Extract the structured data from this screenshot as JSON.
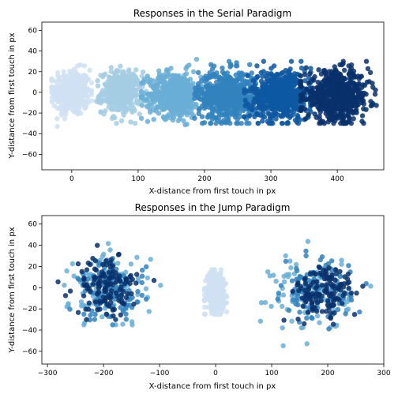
{
  "chart_data": [
    {
      "type": "scatter",
      "title": "Responses in the Serial Paradigm",
      "xlabel": "X-distance from first touch in px",
      "ylabel": "Y-distance from first touch in px",
      "xlim": [
        -45,
        470
      ],
      "ylim": [
        -75,
        68
      ],
      "xticks": [
        0,
        100,
        200,
        300,
        400
      ],
      "yticks": [
        -60,
        -40,
        -20,
        0,
        20,
        40,
        60
      ],
      "grid": false,
      "series": [
        {
          "color": "#cfe1f2",
          "cluster": {
            "center": [
              0,
              0
            ],
            "spread": [
              14,
              11
            ],
            "count": 360,
            "xrange": [
              -30,
              30
            ],
            "yrange": [
              -33,
              30
            ]
          }
        },
        {
          "color": "#a4cce3",
          "cluster": {
            "center": [
              75,
              0
            ],
            "spread": [
              15,
              10
            ],
            "count": 420,
            "xrange": [
              35,
              115
            ],
            "yrange": [
              -30,
              28
            ]
          }
        },
        {
          "color": "#6aaed6",
          "cluster": {
            "center": [
              155,
              -2
            ],
            "spread": [
              20,
              11
            ],
            "count": 520,
            "xrange": [
              105,
              205
            ],
            "yrange": [
              -32,
              32
            ]
          }
        },
        {
          "color": "#3282be",
          "cluster": {
            "center": [
              235,
              -3
            ],
            "spread": [
              22,
              12
            ],
            "count": 620,
            "xrange": [
              185,
              290
            ],
            "yrange": [
              -30,
              30
            ]
          }
        },
        {
          "color": "#0e58a2",
          "cluster": {
            "center": [
              315,
              -3
            ],
            "spread": [
              23,
              12
            ],
            "count": 620,
            "xrange": [
              260,
              360
            ],
            "yrange": [
              -30,
              30
            ]
          }
        },
        {
          "color": "#08306b",
          "cluster": {
            "center": [
              400,
              -4
            ],
            "spread": [
              24,
              12
            ],
            "count": 620,
            "xrange": [
              345,
              460
            ],
            "yrange": [
              -30,
              30
            ]
          }
        }
      ]
    },
    {
      "type": "scatter",
      "title": "Responses in the Jump Paradigm",
      "xlabel": "X-distance from first touch in px",
      "ylabel": "Y-distance from first touch in px",
      "xlim": [
        -310,
        300
      ],
      "ylim": [
        -72,
        68
      ],
      "xticks": [
        -300,
        -200,
        -100,
        0,
        100,
        200,
        300
      ],
      "yticks": [
        -60,
        -40,
        -20,
        0,
        20,
        40,
        60
      ],
      "grid": false,
      "series": [
        {
          "color": "#cfe1f2",
          "clusters": [
            {
              "center": [
                0,
                -4
              ],
              "spread": [
                8,
                9
              ],
              "count": 320,
              "xrange": [
                -20,
                20
              ],
              "yrange": [
                -25,
                17
              ]
            }
          ]
        },
        {
          "color": "#6aaed6",
          "clusters": [
            {
              "center": [
                -190,
                -2
              ],
              "spread": [
                35,
                18
              ],
              "count": 110,
              "xrange": [
                -270,
                -95
              ],
              "yrange": [
                -35,
                60
              ]
            },
            {
              "center": [
                170,
                -5
              ],
              "spread": [
                35,
                18
              ],
              "count": 110,
              "xrange": [
                80,
                280
              ],
              "yrange": [
                -68,
                50
              ]
            }
          ]
        },
        {
          "color": "#3282be",
          "clusters": [
            {
              "center": [
                -185,
                -3
              ],
              "spread": [
                30,
                14
              ],
              "count": 120,
              "xrange": [
                -260,
                -100
              ],
              "yrange": [
                -35,
                52
              ]
            },
            {
              "center": [
                180,
                -4
              ],
              "spread": [
                30,
                14
              ],
              "count": 120,
              "xrange": [
                100,
                270
              ],
              "yrange": [
                -40,
                52
              ]
            }
          ]
        },
        {
          "color": "#08306b",
          "clusters": [
            {
              "center": [
                -195,
                2
              ],
              "spread": [
                28,
                14
              ],
              "count": 130,
              "xrange": [
                -285,
                -110
              ],
              "yrange": [
                -30,
                43
              ]
            },
            {
              "center": [
                195,
                -5
              ],
              "spread": [
                28,
                13
              ],
              "count": 130,
              "xrange": [
                120,
                280
              ],
              "yrange": [
                -40,
                40
              ]
            }
          ]
        }
      ]
    }
  ]
}
